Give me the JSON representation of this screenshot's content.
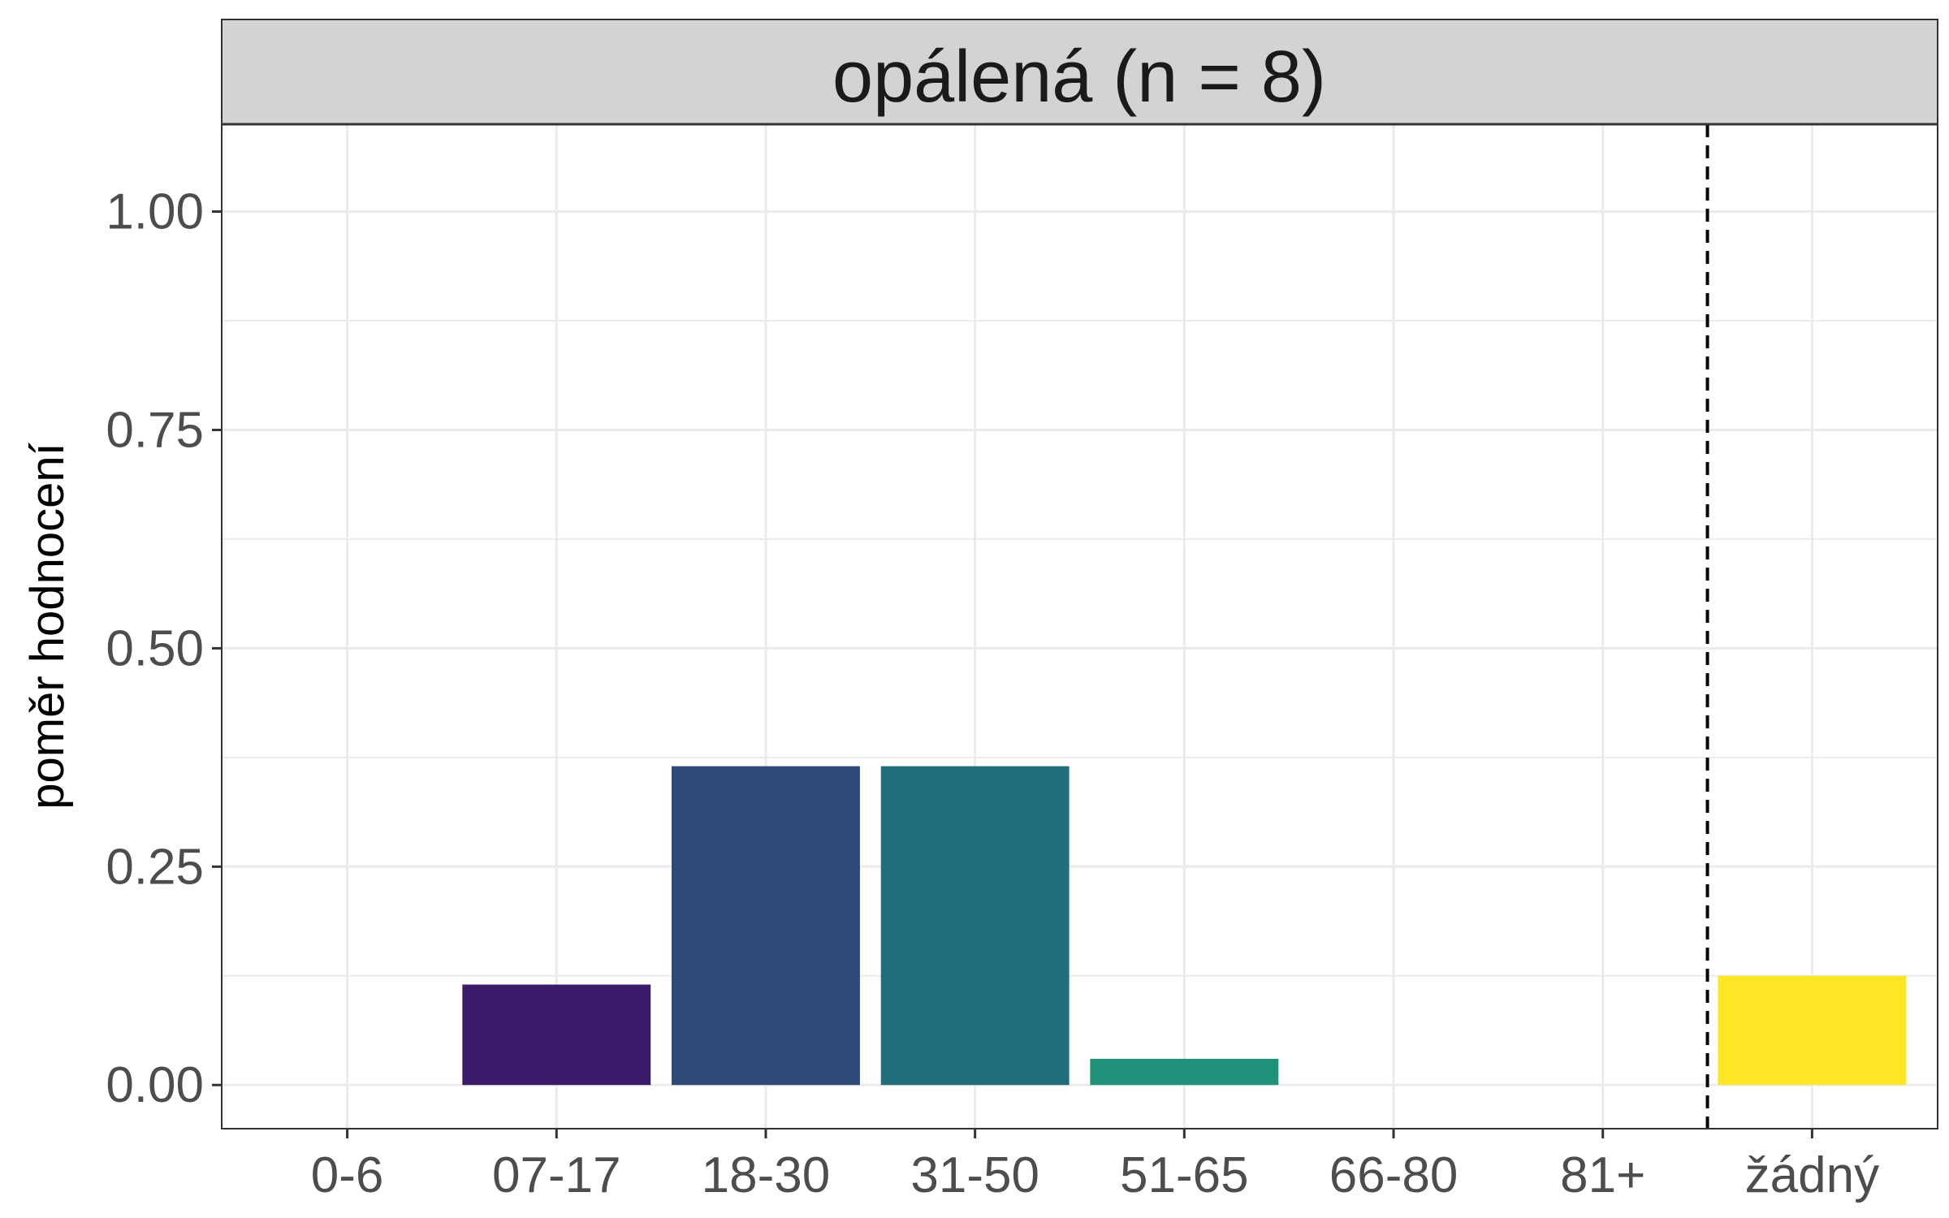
{
  "chart_data": {
    "type": "bar",
    "facet_title": "opálená (n = 8)",
    "xlabel": "",
    "ylabel": "poměr hodnocení",
    "categories": [
      "0-6",
      "07-17",
      "18-30",
      "31-50",
      "51-65",
      "66-80",
      "81+",
      "žádný"
    ],
    "values": [
      0,
      0.115,
      0.365,
      0.365,
      0.03,
      0,
      0,
      0.125
    ],
    "colors": [
      "#440154",
      "#3B1C6B",
      "#2D4A78",
      "#216E7A",
      "#21927A",
      "#5EC962",
      "#B5DE2B",
      "#FDE725"
    ],
    "ylim": [
      -0.05,
      1.1
    ],
    "y_ticks": [
      0,
      0.25,
      0.5,
      0.75,
      1.0
    ],
    "y_tick_labels": [
      "0.00",
      "0.25",
      "0.50",
      "0.75",
      "1.00"
    ],
    "reference_line": {
      "position": "between 81+ and žádný",
      "style": "dashed"
    },
    "grid": true,
    "legend": "none"
  }
}
